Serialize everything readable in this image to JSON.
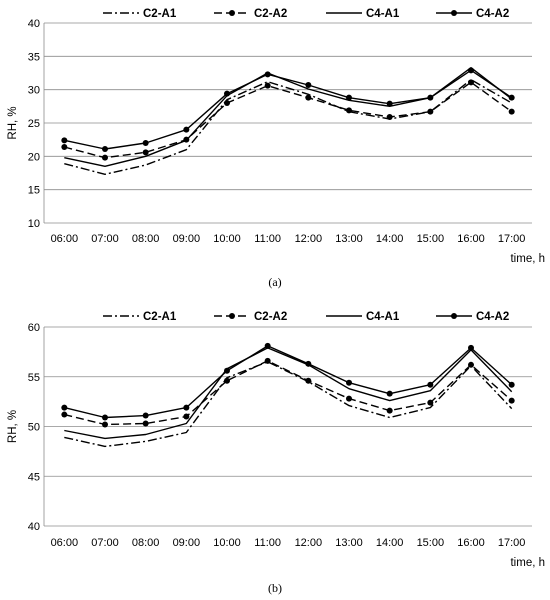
{
  "chart_data": [
    {
      "type": "line",
      "caption": "(a)",
      "xlabel": "time, h",
      "ylabel": "RH, %",
      "ylim": [
        10,
        40
      ],
      "yticks": [
        10,
        15,
        20,
        25,
        30,
        35,
        40
      ],
      "grid": true,
      "legend_position": "top",
      "categories": [
        "06:00",
        "07:00",
        "08:00",
        "09:00",
        "10:00",
        "11:00",
        "12:00",
        "13:00",
        "14:00",
        "15:00",
        "16:00",
        "17:00"
      ],
      "series": [
        {
          "name": "C2-A1",
          "style": "dash-dot",
          "markers": false,
          "values": [
            18.9,
            17.3,
            18.7,
            21.0,
            28.5,
            31.2,
            29.3,
            26.7,
            25.6,
            26.7,
            31.5,
            28.0
          ]
        },
        {
          "name": "C2-A2",
          "style": "dashed",
          "markers": true,
          "values": [
            21.4,
            19.8,
            20.6,
            22.5,
            28.0,
            30.6,
            28.8,
            26.9,
            25.9,
            26.7,
            31.1,
            26.7
          ]
        },
        {
          "name": "C4-A1",
          "style": "solid",
          "markers": false,
          "values": [
            19.8,
            18.5,
            20.0,
            22.4,
            29.1,
            32.5,
            30.1,
            28.4,
            27.5,
            28.8,
            33.3,
            28.6
          ]
        },
        {
          "name": "C4-A2",
          "style": "solid",
          "markers": true,
          "values": [
            22.4,
            21.1,
            22.0,
            24.0,
            29.4,
            32.3,
            30.7,
            28.8,
            27.9,
            28.8,
            32.9,
            28.8
          ]
        }
      ]
    },
    {
      "type": "line",
      "caption": "(b)",
      "xlabel": "time, h",
      "ylabel": "RH, %",
      "ylim": [
        40,
        60
      ],
      "yticks": [
        40,
        45,
        50,
        55,
        60
      ],
      "grid": true,
      "legend_position": "top",
      "categories": [
        "06:00",
        "07:00",
        "08:00",
        "09:00",
        "10:00",
        "11:00",
        "12:00",
        "13:00",
        "14:00",
        "15:00",
        "16:00",
        "17:00"
      ],
      "series": [
        {
          "name": "C2-A1",
          "style": "dash-dot",
          "markers": false,
          "values": [
            48.9,
            48.0,
            48.5,
            49.4,
            54.9,
            56.5,
            54.5,
            52.1,
            50.9,
            51.9,
            56.1,
            51.8
          ]
        },
        {
          "name": "C2-A2",
          "style": "dashed",
          "markers": true,
          "values": [
            51.2,
            50.2,
            50.3,
            51.0,
            54.6,
            56.6,
            54.6,
            52.8,
            51.6,
            52.4,
            56.2,
            52.6
          ]
        },
        {
          "name": "C4-A1",
          "style": "solid",
          "markers": false,
          "values": [
            49.6,
            48.8,
            49.2,
            50.3,
            55.8,
            57.9,
            56.2,
            53.8,
            52.6,
            53.6,
            57.7,
            53.5
          ]
        },
        {
          "name": "C4-A2",
          "style": "solid",
          "markers": true,
          "values": [
            51.9,
            50.9,
            51.1,
            51.9,
            55.6,
            58.1,
            56.3,
            54.4,
            53.3,
            54.2,
            57.9,
            54.2
          ]
        }
      ]
    }
  ]
}
